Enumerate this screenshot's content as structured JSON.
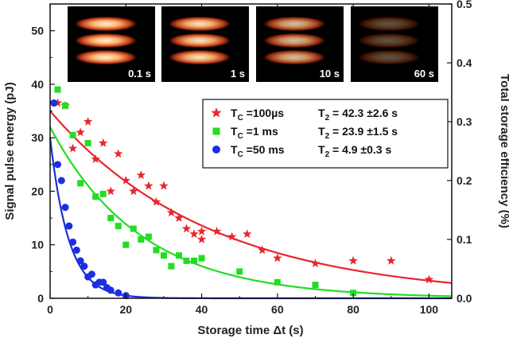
{
  "chart_data": {
    "type": "scatter",
    "xlabel": "Storage time Δt (s)",
    "ylabel": "Signal pulse energy (pJ)",
    "y2label": "Total storage efficiency (%)",
    "xlim": [
      0,
      106
    ],
    "ylim": [
      0,
      55
    ],
    "y2lim": [
      0,
      0.5
    ],
    "xticks": [
      "0",
      "20",
      "40",
      "60",
      "80",
      "100"
    ],
    "yticks": [
      "0",
      "10",
      "20",
      "30",
      "40",
      "50"
    ],
    "y2ticks": [
      "0.0",
      "0.1",
      "0.2",
      "0.3",
      "0.4",
      "0.5"
    ],
    "grid": false,
    "legend_position": "right-middle",
    "insets": [
      {
        "label": "0.1 s",
        "brightness": 1.0
      },
      {
        "label": "1 s",
        "brightness": 0.95
      },
      {
        "label": "10 s",
        "brightness": 0.8
      },
      {
        "label": "60 s",
        "brightness": 0.35
      }
    ],
    "series": [
      {
        "marker": "star",
        "color": "#e8262d",
        "legend_tc": "T",
        "legend_tc_sub": "C",
        "legend_tc_val": "=100µs",
        "legend_t2": "T",
        "legend_t2_sub": "2",
        "legend_t2_val": "= 42.3 ±2.6 s",
        "fit": {
          "A": 35,
          "T2": 42.3
        },
        "points": [
          [
            2,
            36.5
          ],
          [
            4,
            36
          ],
          [
            6,
            28
          ],
          [
            8,
            31
          ],
          [
            10,
            33
          ],
          [
            12,
            26
          ],
          [
            14,
            29
          ],
          [
            16,
            20
          ],
          [
            18,
            27
          ],
          [
            20,
            22
          ],
          [
            22,
            20
          ],
          [
            24,
            23
          ],
          [
            26,
            21
          ],
          [
            28,
            18
          ],
          [
            30,
            21
          ],
          [
            32,
            16
          ],
          [
            34,
            15
          ],
          [
            36,
            13
          ],
          [
            38,
            12
          ],
          [
            40,
            11
          ],
          [
            40,
            12.5
          ],
          [
            44,
            12.5
          ],
          [
            48,
            11.5
          ],
          [
            52,
            12
          ],
          [
            56,
            9
          ],
          [
            60,
            7.5
          ],
          [
            70,
            6.5
          ],
          [
            80,
            7
          ],
          [
            90,
            7
          ],
          [
            100,
            3.5
          ]
        ]
      },
      {
        "marker": "square",
        "color": "#22dd22",
        "legend_tc": "T",
        "legend_tc_sub": "C",
        "legend_tc_val": "=1 ms",
        "legend_t2": "T",
        "legend_t2_sub": "2",
        "legend_t2_val": "= 23.9 ±1.5 s",
        "fit": {
          "A": 32,
          "T2": 23.9
        },
        "points": [
          [
            2,
            39
          ],
          [
            4,
            36
          ],
          [
            6,
            30.5
          ],
          [
            8,
            21.5
          ],
          [
            10,
            29
          ],
          [
            12,
            19
          ],
          [
            14,
            19.5
          ],
          [
            16,
            15
          ],
          [
            18,
            13.5
          ],
          [
            20,
            10
          ],
          [
            22,
            13
          ],
          [
            24,
            11
          ],
          [
            26,
            11.5
          ],
          [
            28,
            9
          ],
          [
            30,
            8
          ],
          [
            32,
            6
          ],
          [
            34,
            8
          ],
          [
            36,
            7
          ],
          [
            38,
            7
          ],
          [
            40,
            7.5
          ],
          [
            50,
            5
          ],
          [
            60,
            3
          ],
          [
            70,
            2.5
          ],
          [
            80,
            1
          ]
        ]
      },
      {
        "marker": "circle",
        "color": "#1a2fe0",
        "legend_tc": "T",
        "legend_tc_sub": "C",
        "legend_tc_val": "=50 ms",
        "legend_t2": "T",
        "legend_t2_sub": "2",
        "legend_t2_val": "=  4.9 ±0.3 s",
        "fit": {
          "A": 30,
          "T2": 4.9
        },
        "points": [
          [
            1,
            36.5
          ],
          [
            2,
            25
          ],
          [
            3,
            22
          ],
          [
            4,
            17
          ],
          [
            5,
            13.5
          ],
          [
            6,
            10.5
          ],
          [
            7,
            9
          ],
          [
            8,
            7
          ],
          [
            9,
            6
          ],
          [
            10,
            4
          ],
          [
            11,
            4.5
          ],
          [
            12,
            2.5
          ],
          [
            13,
            3
          ],
          [
            14,
            3
          ],
          [
            15,
            2
          ],
          [
            16,
            1.5
          ],
          [
            18,
            1
          ],
          [
            20,
            0.5
          ]
        ]
      }
    ]
  }
}
